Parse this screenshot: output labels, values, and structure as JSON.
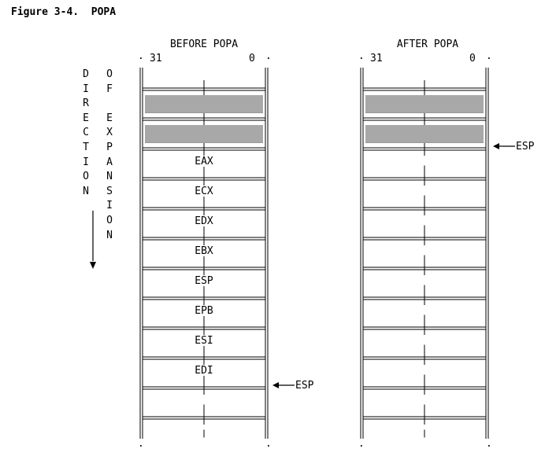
{
  "figure": {
    "title": "Figure 3-4.  POPA"
  },
  "direction": {
    "col1": [
      "D",
      "I",
      "R",
      "E",
      "C",
      "T",
      "I",
      "O",
      "N"
    ],
    "col2": [
      "O",
      "F",
      "",
      "E",
      "X",
      "P",
      "A",
      "N",
      "S",
      "I",
      "O",
      "N"
    ]
  },
  "stacks": [
    {
      "title": "BEFORE POPA",
      "bit_high": "31",
      "bit_low": "0",
      "cells": [
        {
          "label": "",
          "shaded": true
        },
        {
          "label": "",
          "shaded": true
        },
        {
          "label": "EAX",
          "shaded": false
        },
        {
          "label": "ECX",
          "shaded": false
        },
        {
          "label": "EDX",
          "shaded": false
        },
        {
          "label": "EBX",
          "shaded": false
        },
        {
          "label": "ESP",
          "shaded": false
        },
        {
          "label": "EPB",
          "shaded": false
        },
        {
          "label": "ESI",
          "shaded": false
        },
        {
          "label": "EDI",
          "shaded": false
        },
        {
          "label": "",
          "shaded": false
        },
        {
          "label": "",
          "shaded": false
        }
      ],
      "pointer_label": "ESP",
      "pointer_boundary": 10
    },
    {
      "title": "AFTER POPA",
      "bit_high": "31",
      "bit_low": "0",
      "cells": [
        {
          "label": "",
          "shaded": true
        },
        {
          "label": "",
          "shaded": true
        },
        {
          "label": "",
          "shaded": false
        },
        {
          "label": "",
          "shaded": false
        },
        {
          "label": "",
          "shaded": false
        },
        {
          "label": "",
          "shaded": false
        },
        {
          "label": "",
          "shaded": false
        },
        {
          "label": "",
          "shaded": false
        },
        {
          "label": "",
          "shaded": false
        },
        {
          "label": "",
          "shaded": false
        },
        {
          "label": "",
          "shaded": false
        },
        {
          "label": "",
          "shaded": false
        }
      ],
      "pointer_label": "ESP",
      "pointer_boundary": 2
    }
  ]
}
